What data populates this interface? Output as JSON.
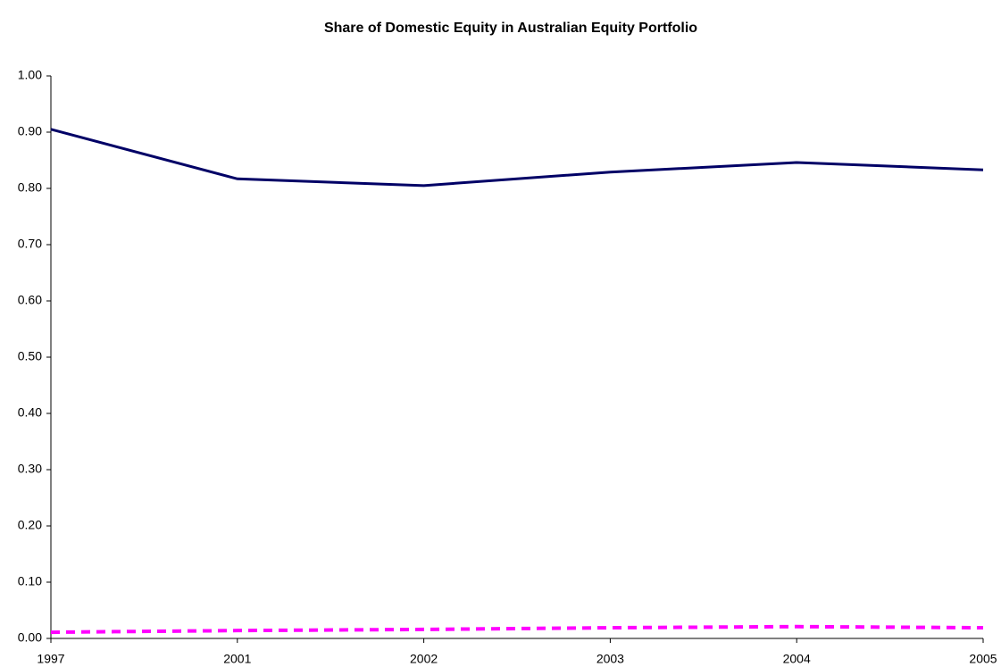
{
  "chart_data": {
    "type": "line",
    "title": "Share of Domestic Equity in Australian Equity Portfolio",
    "categories": [
      "1997",
      "2001",
      "2002",
      "2003",
      "2004",
      "2005"
    ],
    "series": [
      {
        "color": "#000066",
        "dash": false,
        "values": [
          0.905,
          0.817,
          0.805,
          0.829,
          0.846,
          0.833
        ]
      },
      {
        "color": "#ff00ff",
        "dash": true,
        "values": [
          0.011,
          0.014,
          0.016,
          0.019,
          0.021,
          0.019
        ]
      }
    ],
    "ylim": [
      0,
      1
    ],
    "yticks": [
      {
        "value": 0,
        "label": "0.00"
      },
      {
        "value": 0.1,
        "label": "0.10"
      },
      {
        "value": 0.2,
        "label": "0.20"
      },
      {
        "value": 0.3,
        "label": "0.30"
      },
      {
        "value": 0.4,
        "label": "0.40"
      },
      {
        "value": 0.5,
        "label": "0.50"
      },
      {
        "value": 0.6,
        "label": "0.60"
      },
      {
        "value": 0.7,
        "label": "0.70"
      },
      {
        "value": 0.8,
        "label": "0.80"
      },
      {
        "value": 0.9,
        "label": "0.90"
      },
      {
        "value": 1,
        "label": "1.00"
      }
    ],
    "grid": false
  }
}
